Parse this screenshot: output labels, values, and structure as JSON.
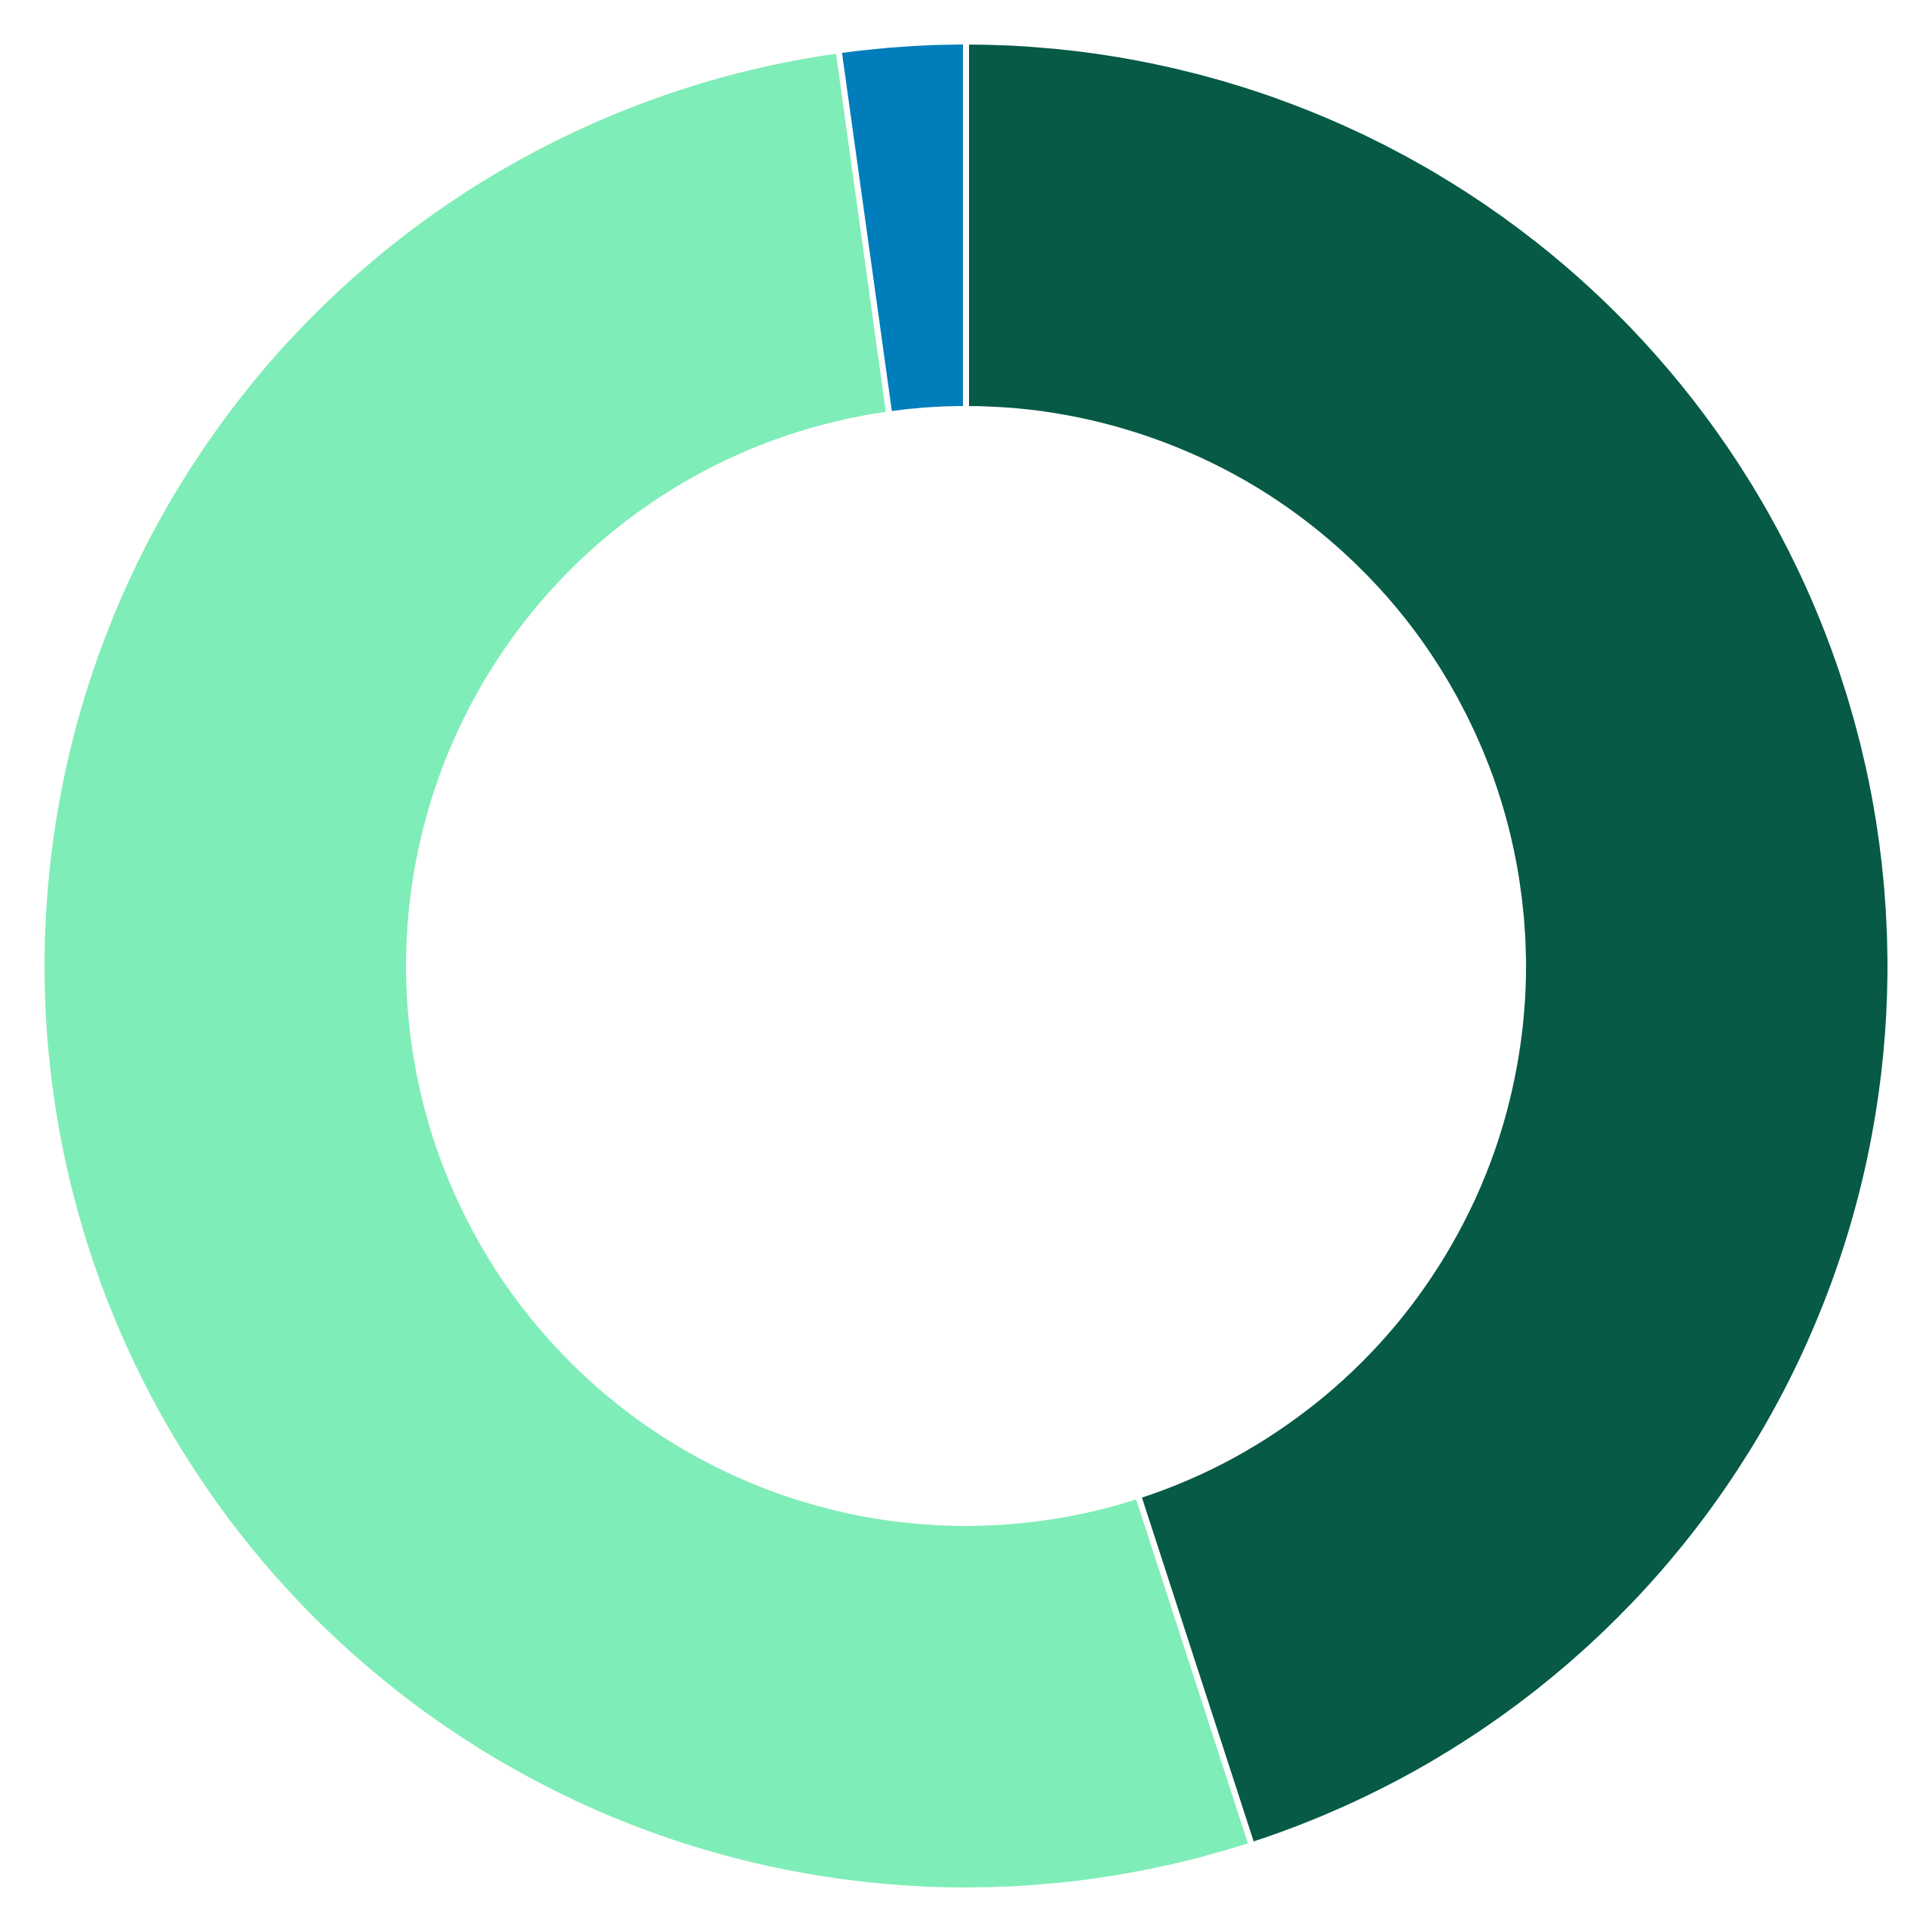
{
  "chart_data": {
    "type": "pie",
    "variant": "donut",
    "title": "",
    "categories": [
      "",
      "",
      ""
    ],
    "values": [
      45,
      52.8,
      2.2
    ],
    "colors": [
      "#065a46",
      "#7fedb7",
      "#027dbb"
    ],
    "start_angle": "top",
    "direction": "clockwise",
    "slice_separator_color": "#ffffff",
    "legend": "none",
    "data_labels": "none"
  }
}
